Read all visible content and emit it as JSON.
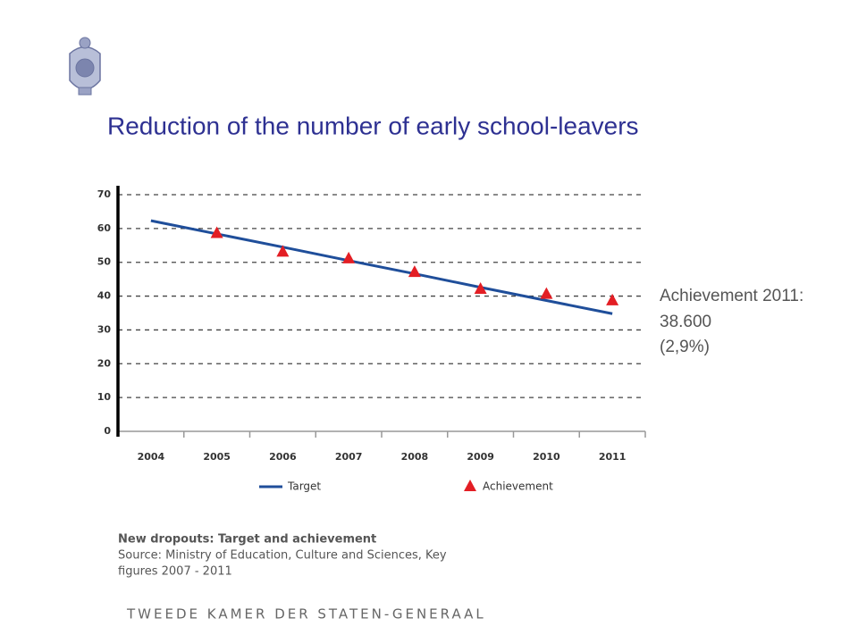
{
  "chart_data": {
    "type": "line",
    "title": "Reduction of the number of early school-leavers",
    "categories": [
      "2004",
      "2005",
      "2006",
      "2007",
      "2008",
      "2009",
      "2010",
      "2011"
    ],
    "series": [
      {
        "name": "Target",
        "color": "#1f4e9a",
        "line": true,
        "values": [
          62.3,
          58.4,
          54.5,
          50.5,
          46.6,
          42.6,
          38.7,
          34.8
        ]
      },
      {
        "name": "Achievement",
        "color": "#e31e24",
        "line": false,
        "marker": "triangle",
        "values": [
          null,
          58.5,
          53,
          51,
          47,
          42,
          40.5,
          38.6
        ]
      }
    ],
    "ylim": [
      0,
      70
    ],
    "yticks": [
      0,
      10,
      20,
      30,
      40,
      50,
      60,
      70
    ],
    "grid": true,
    "annotation": [
      "Achievement 2011:",
      "38.600",
      "(2,9%)"
    ],
    "caption": "New dropouts: Target and achievement",
    "source": [
      "Source: Ministry of Education, Culture and Sciences, Key",
      "figures 2007 - 2011"
    ]
  },
  "footer": "TWEEDE KAMER DER STATEN-GENERAAL"
}
